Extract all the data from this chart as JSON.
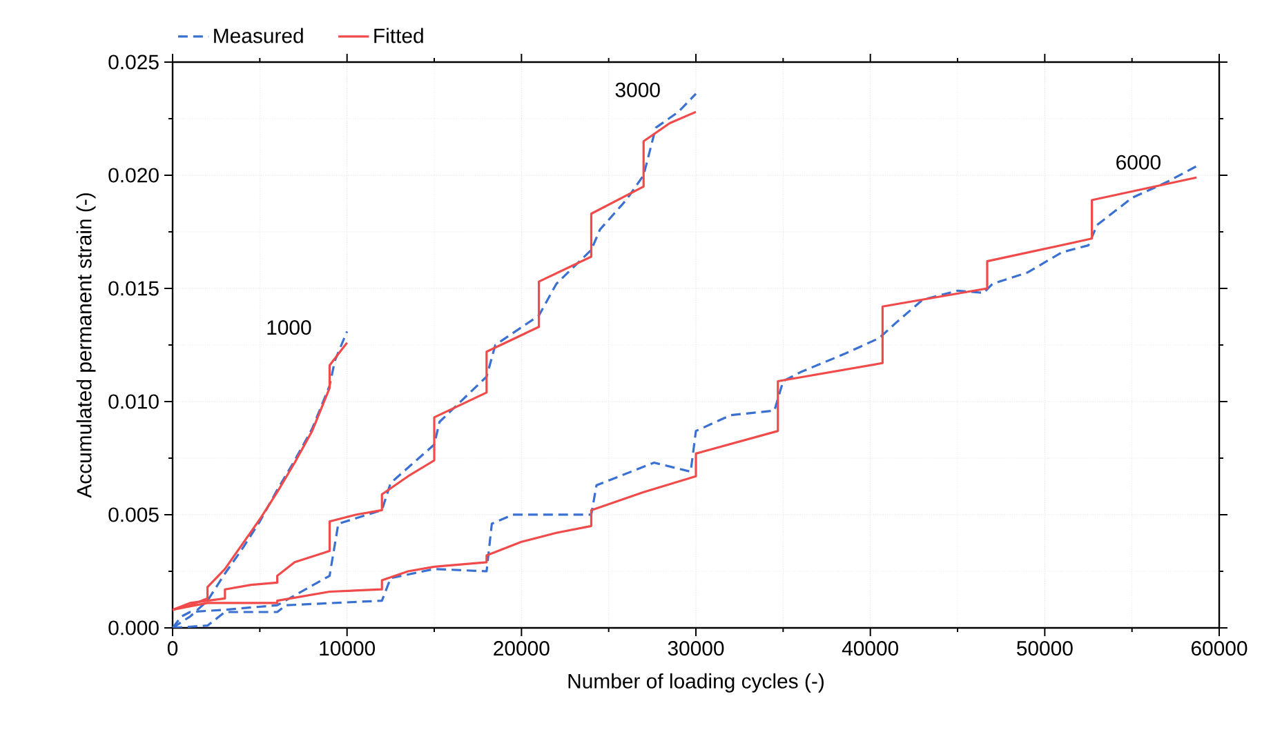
{
  "chart_data": {
    "type": "line",
    "xlabel": "Number of loading cycles (-)",
    "ylabel": "Accumulated permanent strain (-)",
    "xlim": [
      0,
      60000
    ],
    "ylim": [
      0,
      0.025
    ],
    "xticks": [
      0,
      10000,
      20000,
      30000,
      40000,
      50000,
      60000
    ],
    "yticks": [
      {
        "value": 0,
        "label": "0.000"
      },
      {
        "value": 0.005,
        "label": "0.005"
      },
      {
        "value": 0.01,
        "label": "0.010"
      },
      {
        "value": 0.015,
        "label": "0.015"
      },
      {
        "value": 0.02,
        "label": "0.020"
      },
      {
        "value": 0.025,
        "label": "0.025"
      }
    ],
    "grid": true,
    "legend": "top",
    "annotations": [
      "1000",
      "3000",
      "6000"
    ],
    "series": [
      {
        "name": "Measured",
        "color": "#3a70d2",
        "line_style": "dashed",
        "x": [
          0,
          1000,
          2000,
          2500,
          3000,
          4000,
          5000,
          6000,
          7000,
          8000,
          9000,
          9300,
          10000
        ],
        "values": [
          0,
          0.0005,
          0.0012,
          0.0018,
          0.0024,
          0.0035,
          0.0047,
          0.0061,
          0.0074,
          0.0088,
          0.0107,
          0.0118,
          0.0131
        ]
      },
      {
        "name": "Fitted",
        "color": "#f04a4a",
        "line_style": "solid",
        "x": [
          0,
          1000,
          2000,
          2000,
          3000,
          4000,
          5000,
          6000,
          7000,
          8000,
          9000,
          9000,
          10000
        ],
        "values": [
          0.0008,
          0.001,
          0.0013,
          0.0018,
          0.0026,
          0.0037,
          0.0048,
          0.006,
          0.0073,
          0.0087,
          0.0106,
          0.0116,
          0.0126
        ]
      },
      {
        "color": "#3a70d2",
        "line_style": "dashed",
        "x": [
          0,
          500,
          1000,
          3000,
          6000,
          9000,
          9500,
          12000,
          12500,
          15000,
          15300,
          18000,
          18500,
          21000,
          22000,
          24000,
          24500,
          26000,
          27000,
          27700,
          29000,
          30000
        ],
        "values": [
          0,
          0.0005,
          0.0007,
          0.0008,
          0.001,
          0.0023,
          0.0046,
          0.0052,
          0.0064,
          0.0081,
          0.0091,
          0.0111,
          0.0125,
          0.0138,
          0.0152,
          0.0167,
          0.0176,
          0.0189,
          0.02,
          0.0221,
          0.0228,
          0.0236
        ]
      },
      {
        "color": "#f04a4a",
        "line_style": "solid",
        "x": [
          0,
          1000,
          3000,
          3000,
          4500,
          6000,
          6000,
          7000,
          9000,
          9000,
          10500,
          12000,
          12000,
          13500,
          15000,
          15000,
          18000,
          18000,
          21000,
          21000,
          24000,
          24000,
          27000,
          27000,
          28500,
          30000
        ],
        "values": [
          0.0008,
          0.0011,
          0.0013,
          0.0017,
          0.0019,
          0.002,
          0.0023,
          0.0029,
          0.0034,
          0.0047,
          0.005,
          0.0052,
          0.0059,
          0.0067,
          0.0074,
          0.0093,
          0.0104,
          0.0122,
          0.0133,
          0.0153,
          0.0164,
          0.0183,
          0.0195,
          0.0215,
          0.0223,
          0.0228
        ]
      },
      {
        "color": "#3a70d2",
        "line_style": "dashed",
        "x": [
          0,
          2000,
          3000,
          6000,
          6500,
          12000,
          12500,
          15000,
          18000,
          18300,
          19500,
          22000,
          24000,
          24300,
          27600,
          29700,
          30000,
          32000,
          34500,
          35000,
          36000,
          38500,
          40500,
          41500,
          43000,
          45000,
          46500,
          47000,
          49000,
          51000,
          52500,
          53000,
          55000,
          57000,
          58700
        ],
        "values": [
          0,
          0.0001,
          0.0007,
          0.0007,
          0.001,
          0.0012,
          0.0022,
          0.0026,
          0.0025,
          0.0046,
          0.005,
          0.005,
          0.005,
          0.0063,
          0.0073,
          0.0069,
          0.0087,
          0.0094,
          0.0096,
          0.0109,
          0.0113,
          0.0121,
          0.0128,
          0.0135,
          0.0145,
          0.0149,
          0.0148,
          0.0152,
          0.0157,
          0.0166,
          0.0169,
          0.0178,
          0.019,
          0.0197,
          0.0204
        ]
      },
      {
        "color": "#f04a4a",
        "line_style": "solid",
        "x": [
          0,
          2000,
          6000,
          6000,
          9000,
          12000,
          12000,
          13500,
          15000,
          18000,
          18000,
          20000,
          22000,
          24000,
          24000,
          27000,
          30000,
          30000,
          34700,
          34700,
          40700,
          40700,
          46700,
          46700,
          52700,
          52700,
          58700
        ],
        "values": [
          0.0008,
          0.0011,
          0.0011,
          0.0012,
          0.0016,
          0.0017,
          0.0021,
          0.0025,
          0.0027,
          0.0029,
          0.0032,
          0.0038,
          0.0042,
          0.0045,
          0.0052,
          0.006,
          0.0067,
          0.0077,
          0.0087,
          0.0109,
          0.0117,
          0.0142,
          0.015,
          0.0162,
          0.0172,
          0.0189,
          0.0199
        ]
      }
    ]
  }
}
